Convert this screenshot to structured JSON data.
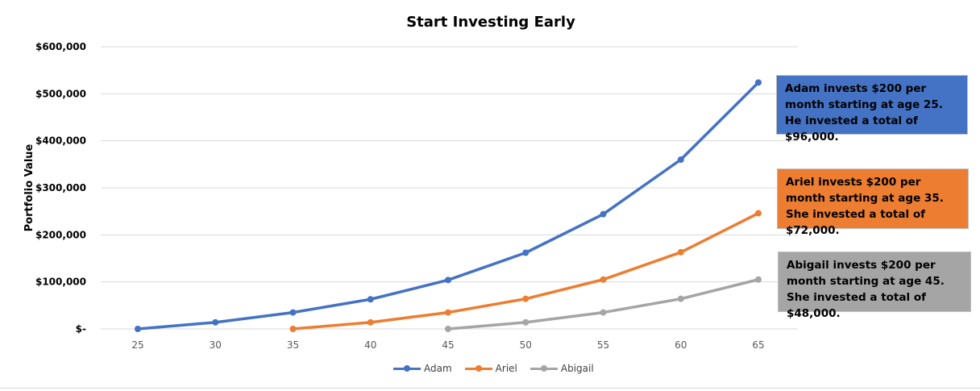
{
  "chart_data": {
    "type": "line",
    "title": "Start Investing Early",
    "xlabel": "",
    "ylabel": "Portfolio Value",
    "x": [
      25,
      30,
      35,
      40,
      45,
      50,
      55,
      60,
      65
    ],
    "ylim": [
      0,
      600000
    ],
    "y_ticks": [
      "$-",
      "$100,000",
      "$200,000",
      "$300,000",
      "$400,000",
      "$500,000",
      "$600,000"
    ],
    "grid": true,
    "legend_position": "bottom",
    "series": [
      {
        "name": "Adam",
        "color": "#4472C4",
        "x": [
          25,
          30,
          35,
          40,
          45,
          50,
          55,
          60,
          65
        ],
        "values": [
          0,
          14000,
          35000,
          63000,
          104000,
          162000,
          244000,
          360000,
          524000
        ]
      },
      {
        "name": "Ariel",
        "color": "#ED7D31",
        "x": [
          35,
          40,
          45,
          50,
          55,
          60,
          65
        ],
        "values": [
          0,
          14000,
          35000,
          64000,
          105000,
          163000,
          246000
        ]
      },
      {
        "name": "Abigail",
        "color": "#A5A5A5",
        "x": [
          45,
          50,
          55,
          60,
          65
        ],
        "values": [
          0,
          14000,
          35000,
          64000,
          105000
        ]
      }
    ]
  },
  "callouts": [
    {
      "series": "Adam",
      "text": "Adam invests $200 per month starting at age 25. He invested a total of $96,000.",
      "color": "#4472C4"
    },
    {
      "series": "Ariel",
      "text": "Ariel invests $200 per month starting at age 35. She invested a total of $72,000.",
      "color": "#ED7D31"
    },
    {
      "series": "Abigail",
      "text": "Abigail invests $200 per month starting at age 45. She invested a total of $48,000.",
      "color": "#A5A5A5"
    }
  ]
}
